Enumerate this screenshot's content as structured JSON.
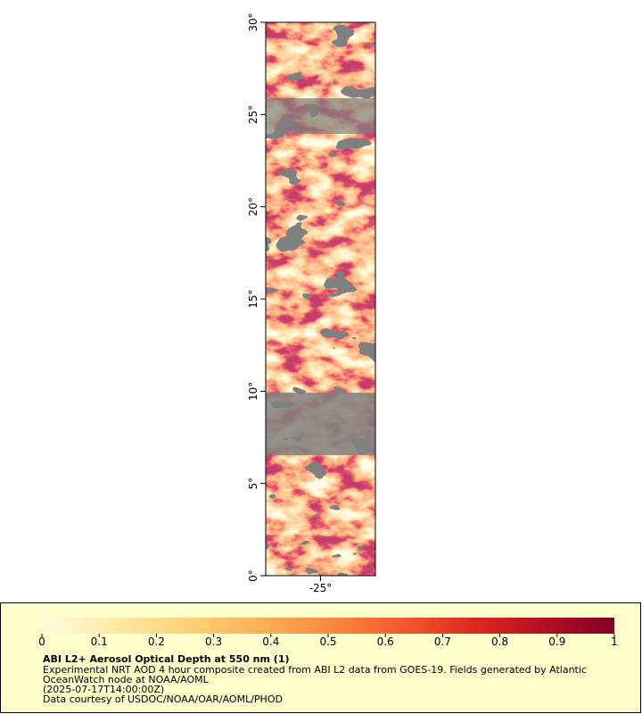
{
  "map": {
    "xlim": [
      -28,
      -22
    ],
    "ylim": [
      0,
      30
    ],
    "xticks": [
      {
        "value": -25,
        "label": "-25°"
      }
    ],
    "yticks": [
      {
        "value": 0,
        "label": "0°"
      },
      {
        "value": 5,
        "label": "5°"
      },
      {
        "value": 10,
        "label": "10°"
      },
      {
        "value": 15,
        "label": "15°"
      },
      {
        "value": 20,
        "label": "20°"
      },
      {
        "value": 25,
        "label": "25°"
      },
      {
        "value": 30,
        "label": "30°"
      }
    ]
  },
  "legend": {
    "title": "ABI L2+ Aerosol Optical Depth at 550 nm (1)",
    "lines": [
      "Experimental NRT AOD 4 hour composite created from ABI L2 data from GOES-19. Fields generated by Atlantic",
      "OceanWatch node at NOAA/AOML",
      "(2025-07-17T14:00:00Z)",
      "Data courtesy of USDOC/NOAA/OAR/AOML/PHOD"
    ],
    "colorbar": {
      "range": [
        0,
        1
      ],
      "ticks": [
        0,
        0.1,
        0.2,
        0.3,
        0.4,
        0.5,
        0.6,
        0.7,
        0.8,
        0.9,
        1
      ],
      "colors": [
        "#fffbe0",
        "#ffeaa8",
        "#fed27a",
        "#fdb257",
        "#fc8b40",
        "#f45a2e",
        "#dd2a21",
        "#b70f25",
        "#800026"
      ]
    }
  }
}
